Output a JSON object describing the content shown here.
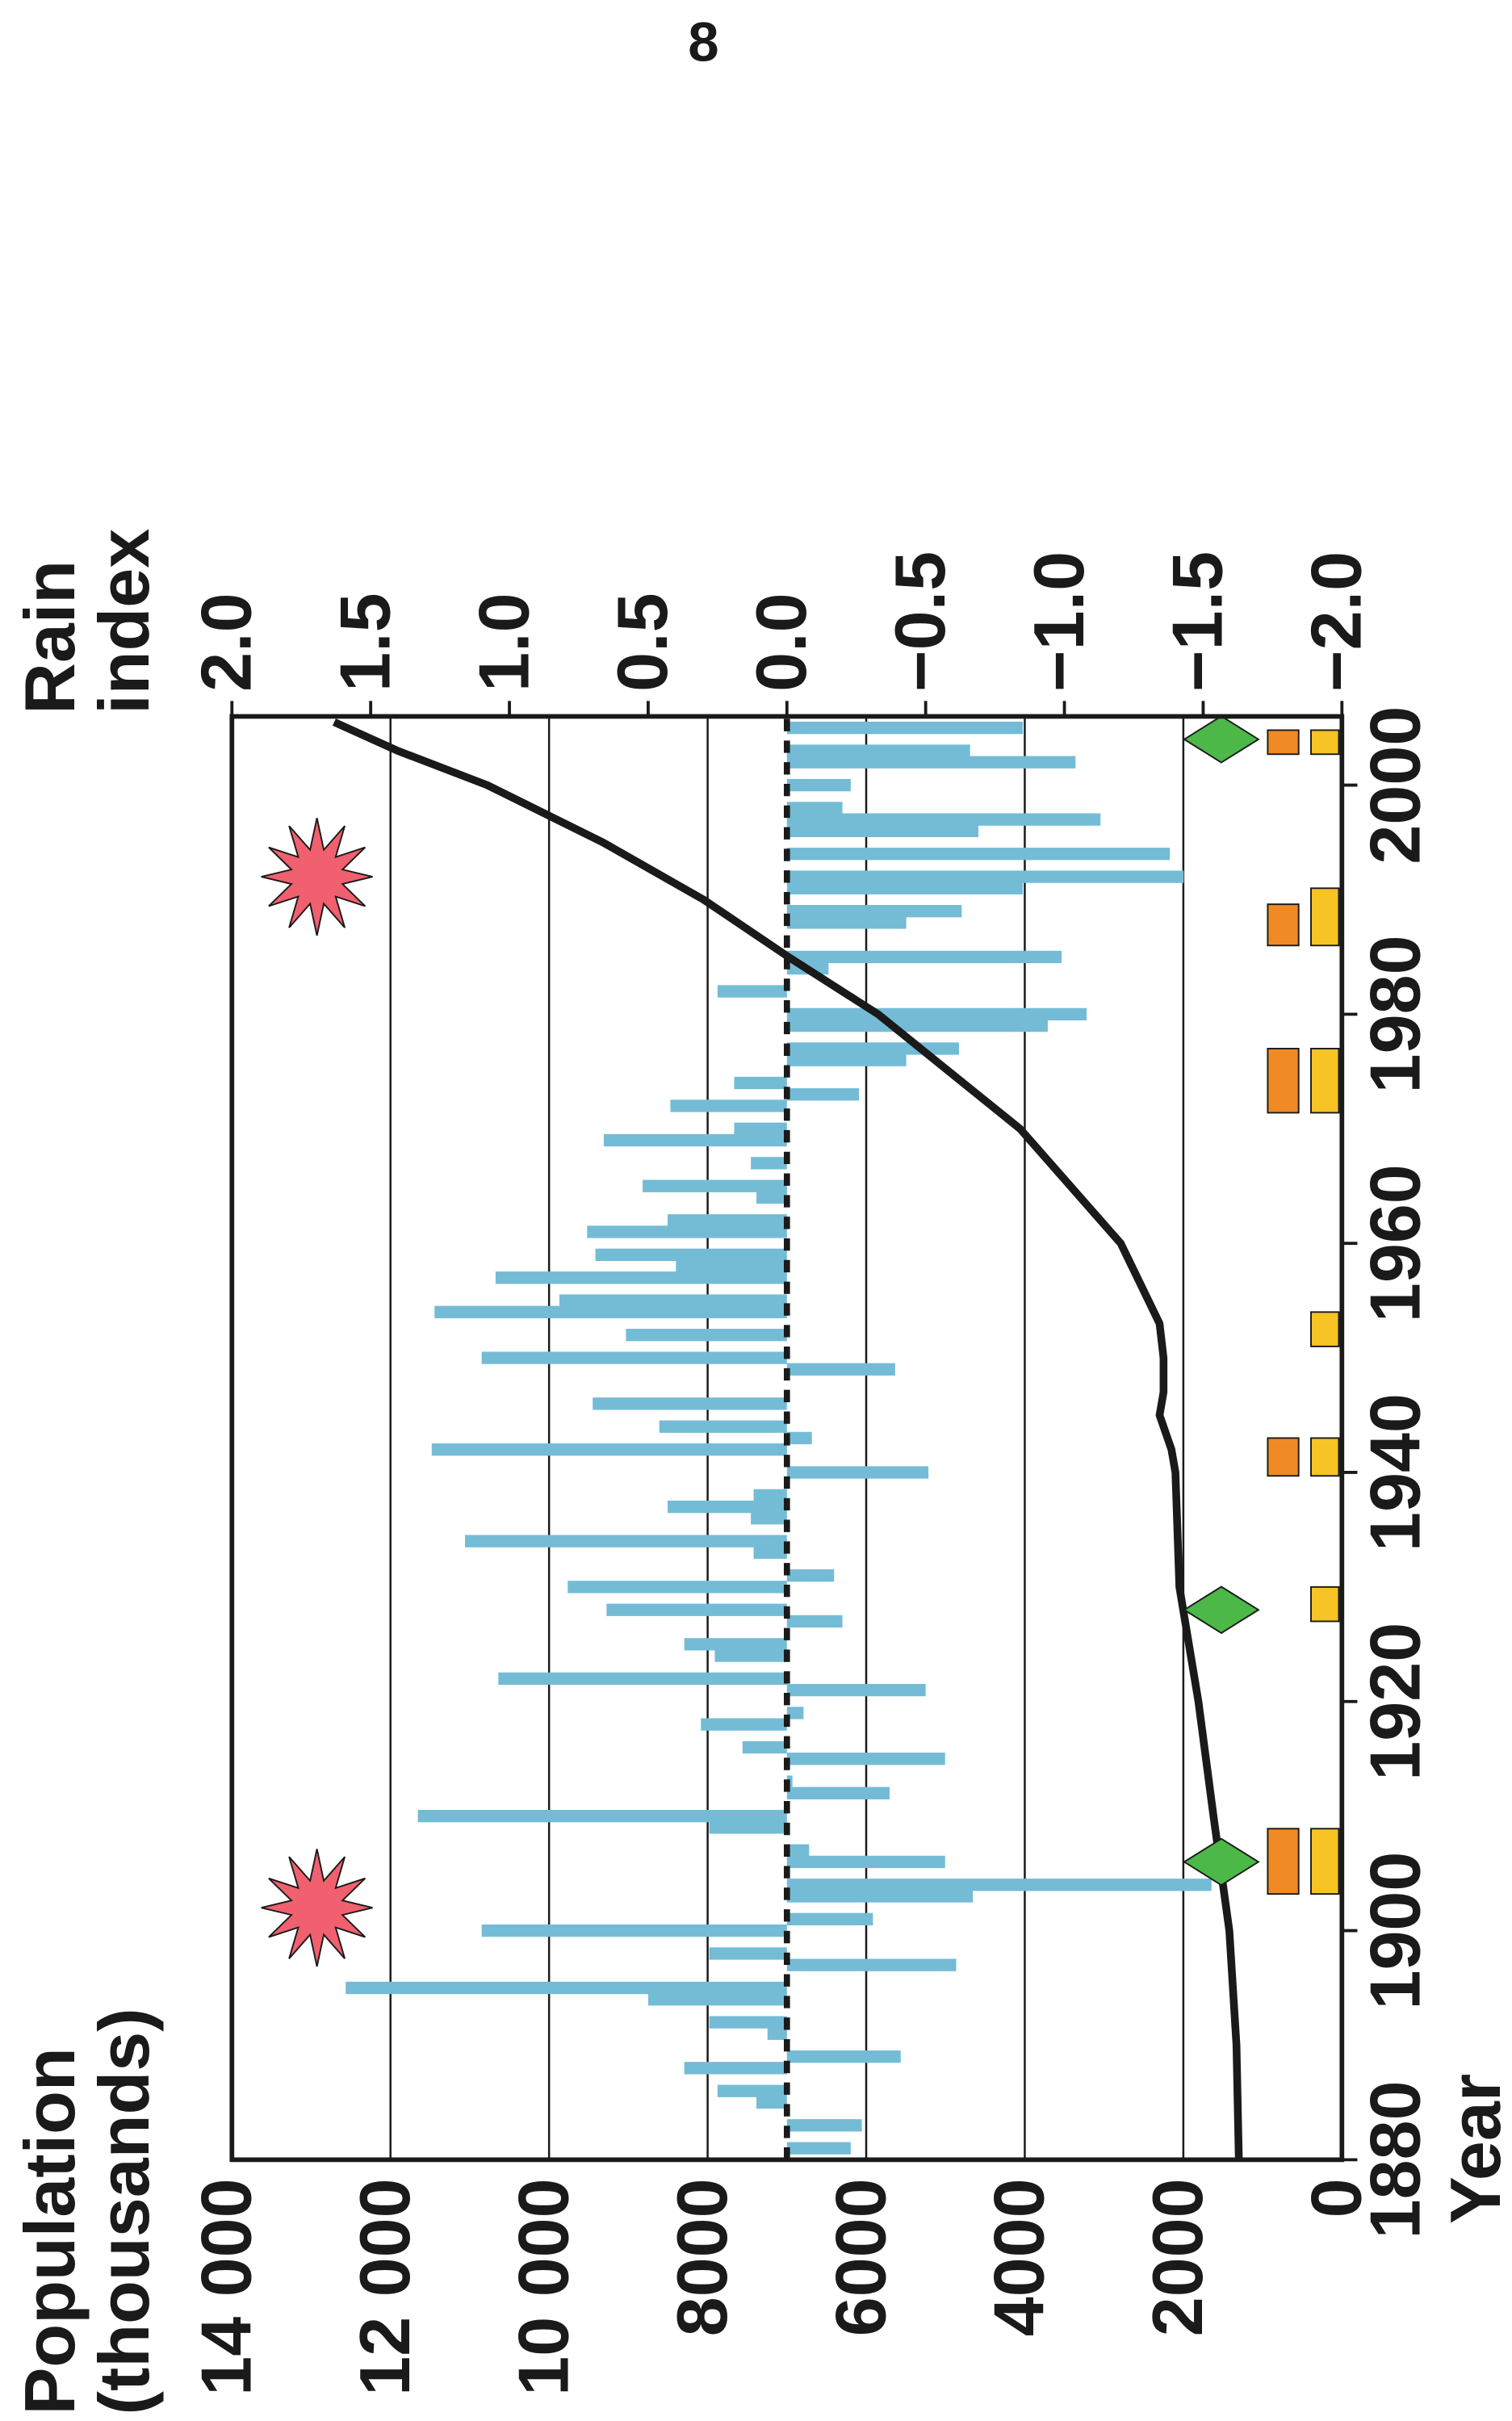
{
  "page_number": "8",
  "chart_data": {
    "type": "bar",
    "xlabel": "Year",
    "ylabel": [
      "Population",
      "(thousands)"
    ],
    "y2label": [
      "Rain",
      "index"
    ],
    "xlim": [
      1880,
      2006
    ],
    "xticks": [
      1880,
      1900,
      1920,
      1940,
      1960,
      1980,
      2000
    ],
    "ylim": [
      0,
      14000
    ],
    "yticks": [
      0,
      2000,
      4000,
      6000,
      8000,
      {
        "value": 10000,
        "label": "10 000"
      },
      {
        "value": 12000,
        "label": "12 000"
      },
      {
        "value": 14000,
        "label": "14 000"
      }
    ],
    "y2lim": [
      -2,
      2
    ],
    "y2ticks": [
      {
        "value": 2,
        "label": "2.0"
      },
      {
        "value": 1.5,
        "label": "1.5"
      },
      {
        "value": 1,
        "label": "1.0"
      },
      {
        "value": 0.5,
        "label": "0.5"
      },
      {
        "value": 0,
        "label": "0.0"
      },
      {
        "value": -0.5,
        "label": "−0.5"
      },
      {
        "value": -1,
        "label": "−1.0"
      },
      {
        "value": -1.5,
        "label": "−1.5"
      },
      {
        "value": -2,
        "label": "−2.0"
      }
    ],
    "grid": true,
    "series": [
      {
        "type": "bar",
        "axis": "y2",
        "color": "#74bcd6",
        "x": [
          1881,
          1883,
          1885,
          1886,
          1888,
          1889,
          1891,
          1892,
          1894,
          1895,
          1897,
          1898,
          1900,
          1901,
          1903,
          1904,
          1906,
          1907,
          1909,
          1910,
          1912,
          1913,
          1915,
          1916,
          1918,
          1919,
          1921,
          1922,
          1924,
          1925,
          1927,
          1928,
          1930,
          1931,
          1933,
          1934,
          1936,
          1937,
          1938,
          1940,
          1942,
          1943,
          1944,
          1946,
          1949,
          1950,
          1952,
          1954,
          1955,
          1957,
          1958,
          1959,
          1961,
          1962,
          1964,
          1965,
          1967,
          1969,
          1970,
          1972,
          1973,
          1974,
          1976,
          1977,
          1979,
          1980,
          1982,
          1984,
          1985,
          1988,
          1989,
          1991,
          1992,
          1994,
          1996,
          1997,
          1998,
          2000,
          2002,
          2003,
          2005
        ],
        "values": [
          -0.23,
          -0.27,
          0.11,
          0.25,
          0.37,
          -0.41,
          0.07,
          0.28,
          0.5,
          1.59,
          -0.61,
          0.28,
          1.1,
          -0.31,
          -0.67,
          -1.53,
          -0.57,
          -0.08,
          0.28,
          1.33,
          -0.37,
          -0.02,
          -0.57,
          0.16,
          0.31,
          -0.06,
          -0.5,
          1.04,
          0.26,
          0.37,
          -0.2,
          0.65,
          0.79,
          -0.17,
          0.12,
          1.16,
          0.13,
          0.43,
          0.12,
          -0.51,
          1.28,
          -0.09,
          0.46,
          0.7,
          -0.39,
          1.1,
          0.58,
          1.27,
          0.82,
          1.05,
          0.4,
          0.69,
          0.72,
          0.43,
          0.11,
          0.52,
          0.13,
          0.66,
          0.19,
          0.42,
          -0.26,
          0.19,
          -0.43,
          -0.62,
          -0.94,
          -1.08,
          0.25,
          -0.15,
          -0.99,
          -0.43,
          -0.63,
          -0.85,
          -1.43,
          -1.38,
          -0.69,
          -1.13,
          -0.2,
          -0.23,
          -1.04,
          -0.66,
          -0.85
        ]
      },
      {
        "type": "line",
        "axis": "y",
        "color": "#1a1a1a",
        "x": [
          1880,
          1890,
          1900,
          1910,
          1920,
          1930,
          1940,
          1942,
          1945,
          1947,
          1950,
          1953,
          1960,
          1970,
          1980,
          1985,
          1990,
          1995,
          2000,
          2003,
          2005.5
        ],
        "values": [
          1300,
          1330,
          1420,
          1620,
          1810,
          2050,
          2100,
          2150,
          2300,
          2250,
          2250,
          2300,
          2790,
          4060,
          5850,
          6980,
          8050,
          9320,
          10780,
          11910,
          12710
        ]
      }
    ],
    "stars": {
      "color": "#f0606e",
      "x": [
        1902,
        1992
      ]
    },
    "diamonds": {
      "color": "#4cb848",
      "x": [
        1906,
        1928,
        2004
      ]
    },
    "orange_periods": {
      "color": "#f08a24",
      "ranges": [
        [
          1903.2,
          1908.9
        ],
        [
          1939.7,
          1943
        ],
        [
          1971.4,
          1977
        ],
        [
          1986,
          1989.6
        ],
        [
          2002.7,
          2004.8
        ]
      ]
    },
    "yellow_periods": {
      "color": "#f7c325",
      "ranges": [
        [
          1903.2,
          1908.9
        ],
        [
          1927,
          1930
        ],
        [
          1939.7,
          1943
        ],
        [
          1951,
          1954
        ],
        [
          1971.4,
          1977
        ],
        [
          1986,
          1991
        ],
        [
          2002.7,
          2004.8
        ]
      ]
    }
  }
}
